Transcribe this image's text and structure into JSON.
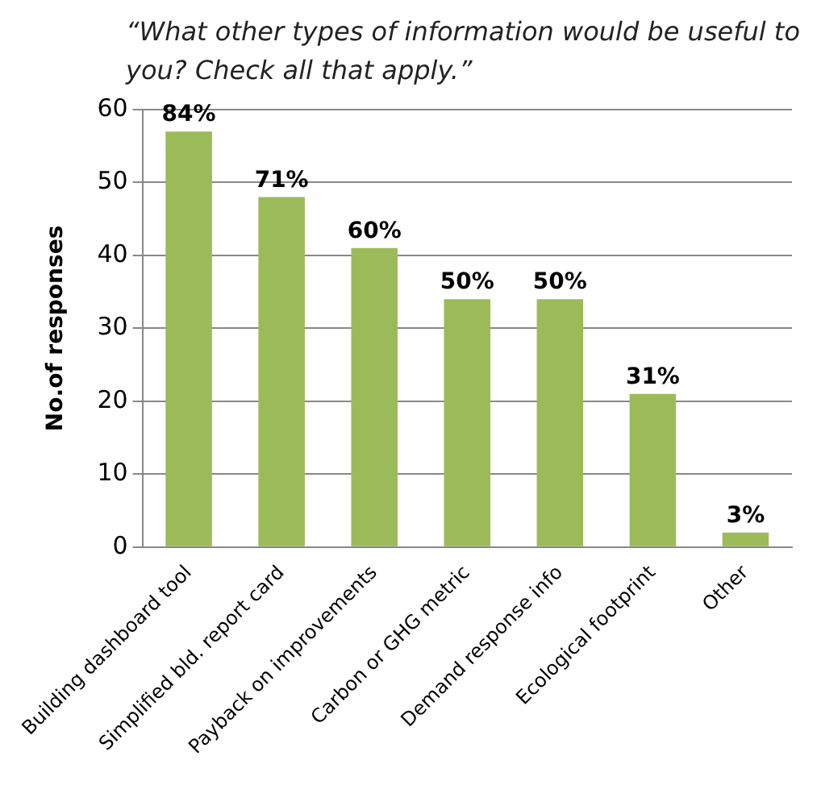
{
  "chart_data": {
    "type": "bar",
    "title": "“What other types of information would be useful to you? Check all that apply.”",
    "ylabel": "No.of responses",
    "categories": [
      "Building dashboard tool",
      "Simplified bld. report card",
      "Payback on improvements",
      "Carbon or GHG metric",
      "Demand response info",
      "Ecological footprint",
      "Other"
    ],
    "values": [
      57,
      48,
      41,
      34,
      34,
      21,
      2
    ],
    "annotations": [
      {
        "text": "84%",
        "x": "Building dashboard tool",
        "y": 57
      },
      {
        "text": "71%",
        "x": "Simplified bld. report card",
        "y": 48
      },
      {
        "text": "60%",
        "x": "Payback on improvements",
        "y": 41
      },
      {
        "text": "50%",
        "x": "Carbon or GHG metric",
        "y": 34
      },
      {
        "text": "50%",
        "x": "Demand response info",
        "y": 34
      },
      {
        "text": "31%",
        "x": "Ecological footprint",
        "y": 21
      },
      {
        "text": "3%",
        "x": "Other",
        "y": 2
      }
    ],
    "color": "#9bbb59",
    "ylim": [
      0,
      60
    ],
    "yticks": [
      0,
      10,
      20,
      30,
      40,
      50,
      60
    ],
    "grid": "y",
    "legend": false
  }
}
